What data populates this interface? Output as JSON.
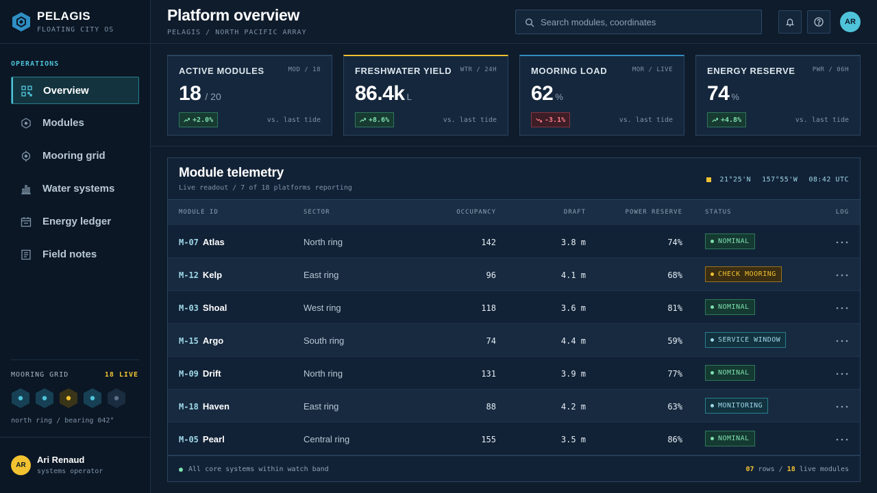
{
  "brand": {
    "name": "PELAGIS",
    "subtitle": "FLOATING CITY OS"
  },
  "sidebar": {
    "section_label": "OPERATIONS",
    "items": [
      {
        "label": "Overview",
        "icon": "grid-icon",
        "active": true
      },
      {
        "label": "Modules",
        "icon": "hexagon-icon"
      },
      {
        "label": "Mooring grid",
        "icon": "target-icon"
      },
      {
        "label": "Water systems",
        "icon": "bar-chart-icon"
      },
      {
        "label": "Energy ledger",
        "icon": "calendar-icon"
      },
      {
        "label": "Field notes",
        "icon": "document-icon"
      }
    ],
    "mooring": {
      "title": "MOORING GRID",
      "live": "18 LIVE",
      "caption": "north ring / bearing 042°",
      "nodes": [
        "online",
        "online",
        "warning",
        "online",
        "idle"
      ]
    },
    "user": {
      "initials": "AR",
      "name": "Ari Renaud",
      "role": "systems operator"
    }
  },
  "header": {
    "title": "Platform overview",
    "breadcrumb": "PELAGIS / NORTH PACIFIC ARRAY",
    "search_placeholder": "Search modules, coordinates",
    "avatar_initials": "AR"
  },
  "cards": [
    {
      "title": "ACTIVE MODULES",
      "code": "MOD / 18",
      "value": "18",
      "of": "/ 20",
      "unit": "",
      "delta": "+2.0%",
      "trend": "up",
      "compare": "vs. last tide",
      "accent": "#2a4560"
    },
    {
      "title": "FRESHWATER YIELD",
      "code": "WTR / 24H",
      "value": "86.4k",
      "of": "",
      "unit": "L",
      "delta": "+8.6%",
      "trend": "up",
      "compare": "vs. last tide",
      "accent": "#f2c230"
    },
    {
      "title": "MOORING LOAD",
      "code": "MOR / LIVE",
      "value": "62",
      "of": "",
      "unit": "%",
      "delta": "-3.1%",
      "trend": "down",
      "compare": "vs. last tide",
      "accent": "#2f8fc4"
    },
    {
      "title": "ENERGY RESERVE",
      "code": "PWR / 06H",
      "value": "74",
      "of": "",
      "unit": "%",
      "delta": "+4.8%",
      "trend": "up",
      "compare": "vs. last tide",
      "accent": "#2a4560"
    }
  ],
  "telemetry": {
    "title": "Module telemetry",
    "subtitle": "Live readout / 7 of 18 platforms reporting",
    "lat": "21°25'N",
    "lon": "157°55'W",
    "time": "08:42 UTC",
    "columns": [
      "MODULE ID",
      "SECTOR",
      "OCCUPANCY",
      "DRAFT",
      "POWER RESERVE",
      "STATUS",
      "LOG"
    ],
    "rows": [
      {
        "code": "M-07",
        "name": "Atlas",
        "sector": "North ring",
        "occupancy": "142",
        "draft": "3.8 m",
        "power": "74%",
        "status": "NOMINAL",
        "tone": "green"
      },
      {
        "code": "M-12",
        "name": "Kelp",
        "sector": "East ring",
        "occupancy": "96",
        "draft": "4.1 m",
        "power": "68%",
        "status": "CHECK MOORING",
        "tone": "amber"
      },
      {
        "code": "M-03",
        "name": "Shoal",
        "sector": "West ring",
        "occupancy": "118",
        "draft": "3.6 m",
        "power": "81%",
        "status": "NOMINAL",
        "tone": "green"
      },
      {
        "code": "M-15",
        "name": "Argo",
        "sector": "South ring",
        "occupancy": "74",
        "draft": "4.4 m",
        "power": "59%",
        "status": "SERVICE WINDOW",
        "tone": "cyan"
      },
      {
        "code": "M-09",
        "name": "Drift",
        "sector": "North ring",
        "occupancy": "131",
        "draft": "3.9 m",
        "power": "77%",
        "status": "NOMINAL",
        "tone": "green"
      },
      {
        "code": "M-18",
        "name": "Haven",
        "sector": "East ring",
        "occupancy": "88",
        "draft": "4.2 m",
        "power": "63%",
        "status": "MONITORING",
        "tone": "cyan"
      },
      {
        "code": "M-05",
        "name": "Pearl",
        "sector": "Central ring",
        "occupancy": "155",
        "draft": "3.5 m",
        "power": "86%",
        "status": "NOMINAL",
        "tone": "green"
      }
    ],
    "footer_note": "All core systems within watch band",
    "footer_rows": "07",
    "footer_rows_label": "rows /",
    "footer_live": "18",
    "footer_live_label": "live modules"
  },
  "colors": {
    "accent": "#4fc3d9",
    "warning": "#f2c230",
    "positive": "#7fe0b0",
    "negative": "#ff7b8c",
    "background": "#0f1c2c"
  }
}
